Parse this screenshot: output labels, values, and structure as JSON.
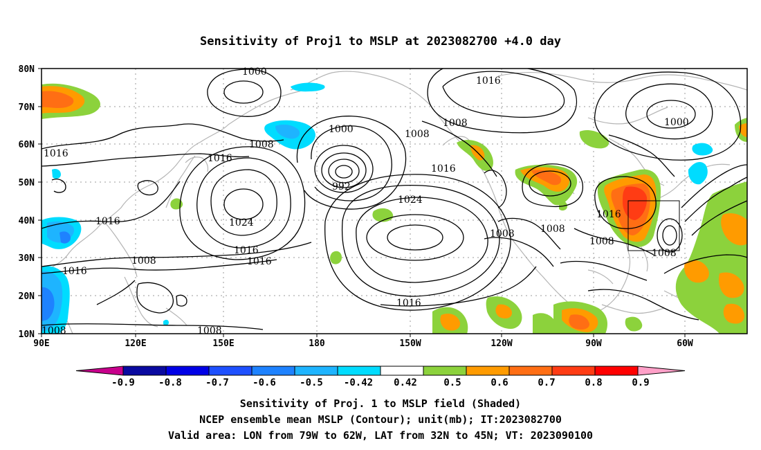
{
  "title": "Sensitivity of Proj1 to MSLP at 2023082700 +4.0 day",
  "lat_labels": [
    "80N",
    "70N",
    "60N",
    "50N",
    "40N",
    "30N",
    "20N",
    "10N"
  ],
  "lon_labels": [
    "90E",
    "120E",
    "150E",
    "180",
    "150W",
    "120W",
    "90W",
    "60W"
  ],
  "contour_labels": [
    "1000",
    "1016",
    "1008",
    "1016",
    "1000",
    "1008",
    "1016",
    "1008",
    "1016",
    "1000",
    "992",
    "1016",
    "1024",
    "1024",
    "1016",
    "1016",
    "1016",
    "1008",
    "1016",
    "1008",
    "1016",
    "1008",
    "1008",
    "1008",
    "1016",
    "1008",
    "1008",
    "1008"
  ],
  "legend": {
    "labels": [
      "-0.9",
      "-0.8",
      "-0.7",
      "-0.6",
      "-0.5",
      "-0.42",
      "0.42",
      "0.5",
      "0.6",
      "0.7",
      "0.8",
      "0.9"
    ],
    "colors": [
      "#c8008c",
      "#0a0aa0",
      "#0000e6",
      "#1e50ff",
      "#1e82ff",
      "#1eb4ff",
      "#00dcff",
      "#ffffff",
      "#8cd23c",
      "#ff9b00",
      "#ff6e14",
      "#ff3c14",
      "#ff0000",
      "#ffa0c8"
    ]
  },
  "captions": [
    "Sensitivity of Proj. 1 to MSLP field (Shaded)",
    "NCEP ensemble mean MSLP (Contour); unit(mb); IT:2023082700",
    "Valid area: LON from 79W to 62W, LAT from 32N to 45N; VT: 2023090100"
  ]
}
